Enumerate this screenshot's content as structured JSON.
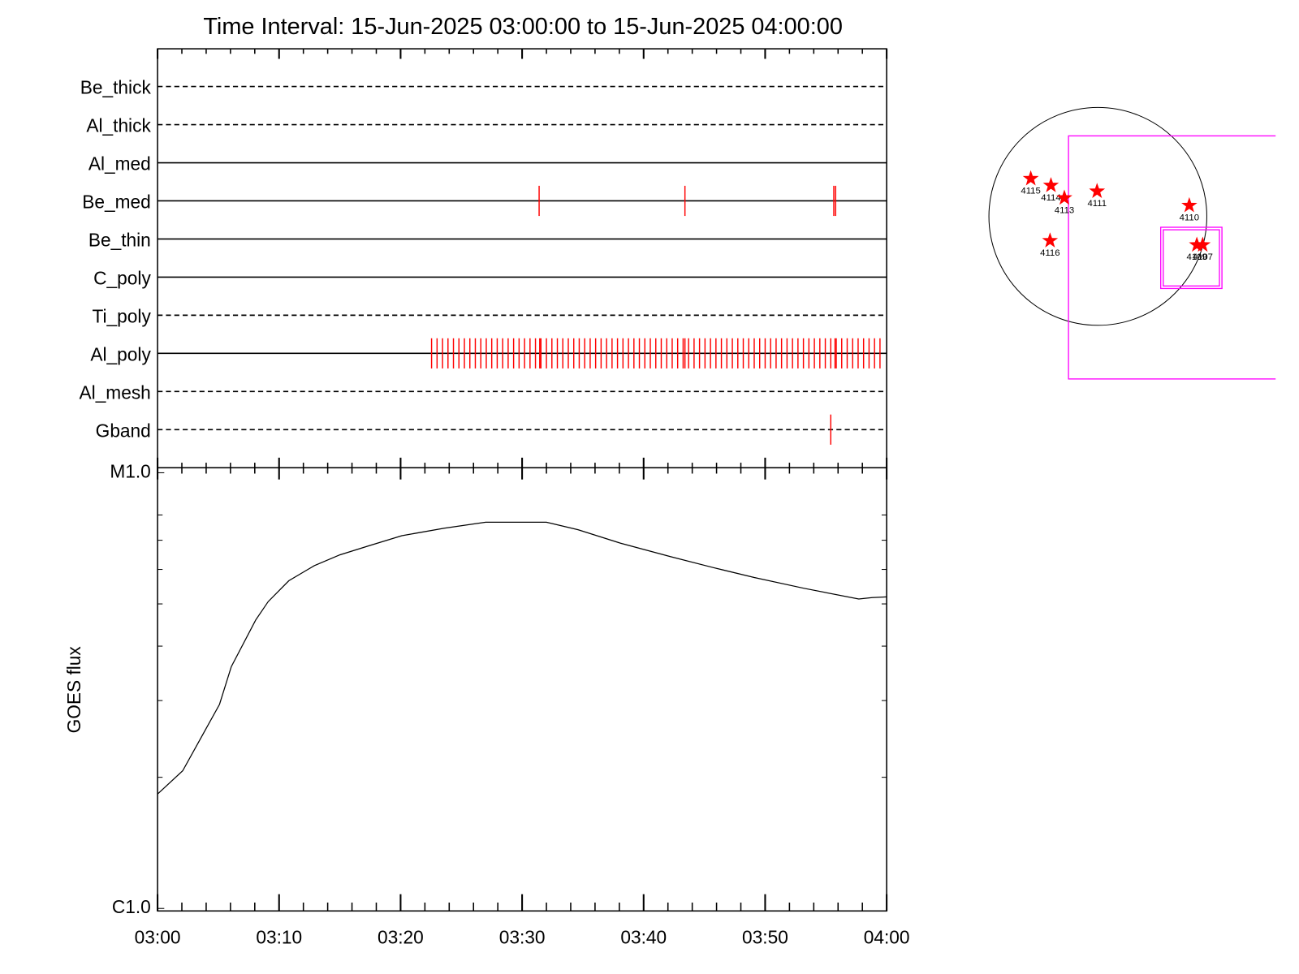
{
  "chart_data": [
    {
      "type": "event",
      "title": "Time Interval: 15-Jun-2025 03:00:00 to 15-Jun-2025 04:00:00",
      "color": "#ff0000",
      "series": [
        {
          "name": "Be_thick",
          "linestyle": "dashed",
          "x": []
        },
        {
          "name": "Al_thick",
          "linestyle": "dashed",
          "x": []
        },
        {
          "name": "Al_med",
          "linestyle": "solid",
          "x": []
        },
        {
          "name": "Be_med",
          "linestyle": "solid",
          "x": [
            31.4,
            43.4,
            55.65,
            55.8
          ]
        },
        {
          "name": "Be_thin",
          "linestyle": "solid",
          "x": []
        },
        {
          "name": "C_poly",
          "linestyle": "solid",
          "x": []
        },
        {
          "name": "Ti_poly",
          "linestyle": "dashed",
          "x": []
        },
        {
          "name": "Al_poly",
          "linestyle": "solid",
          "x": [
            22.55,
            23.0,
            23.45,
            23.9,
            24.35,
            24.8,
            25.25,
            25.7,
            26.15,
            26.6,
            27.05,
            27.5,
            27.95,
            28.4,
            28.85,
            29.3,
            29.75,
            30.2,
            30.65,
            31.1,
            31.45,
            31.55,
            32.0,
            32.45,
            32.9,
            33.35,
            33.8,
            34.25,
            34.7,
            35.15,
            35.6,
            36.05,
            36.5,
            36.95,
            37.4,
            37.85,
            38.3,
            38.75,
            39.2,
            39.65,
            40.1,
            40.55,
            41.0,
            41.45,
            41.9,
            42.35,
            42.8,
            43.25,
            43.4,
            43.7,
            44.15,
            44.6,
            45.05,
            45.5,
            45.95,
            46.4,
            46.85,
            47.3,
            47.75,
            48.2,
            48.65,
            49.1,
            49.55,
            50.0,
            50.45,
            50.9,
            51.35,
            51.8,
            52.25,
            52.7,
            53.15,
            53.6,
            54.05,
            54.5,
            54.95,
            55.4,
            55.75,
            55.85,
            56.3,
            56.75,
            57.2,
            57.65,
            58.1,
            58.55,
            59.0,
            59.45
          ]
        },
        {
          "name": "Al_mesh",
          "linestyle": "dashed",
          "x": []
        },
        {
          "name": "Gband",
          "linestyle": "dashed",
          "x": [
            55.4
          ]
        }
      ]
    },
    {
      "type": "line",
      "ylabel": "GOES flux",
      "log_y": true,
      "color": "#000000",
      "x": [
        0,
        2.07,
        5.1,
        6.07,
        8.07,
        9.1,
        10.8,
        12.9,
        15.0,
        17.4,
        20.1,
        23.6,
        27.0,
        32.0,
        34.6,
        38.1,
        42.2,
        45.7,
        49.1,
        53.2,
        57.7,
        58.8,
        60
      ],
      "values": [
        1.83e-06,
        2.07e-06,
        2.94e-06,
        3.59e-06,
        4.59e-06,
        5.06e-06,
        5.65e-06,
        6.12e-06,
        6.48e-06,
        6.8e-06,
        7.17e-06,
        7.46e-06,
        7.7e-06,
        7.7e-06,
        7.4e-06,
        6.89e-06,
        6.42e-06,
        6.06e-06,
        5.75e-06,
        5.43e-06,
        5.13e-06,
        5.17e-06,
        5.19e-06
      ],
      "xlim": [
        0,
        60
      ],
      "xticks": [
        {
          "value": 0,
          "label": "03:00"
        },
        {
          "value": 10,
          "label": "03:10"
        },
        {
          "value": 20,
          "label": "03:20"
        },
        {
          "value": 30,
          "label": "03:30"
        },
        {
          "value": 40,
          "label": "03:40"
        },
        {
          "value": 50,
          "label": "03:50"
        },
        {
          "value": 60,
          "label": "04:00"
        }
      ],
      "xminorticks": [
        2,
        4,
        6,
        8,
        12,
        14,
        16,
        18,
        22,
        24,
        26,
        28,
        32,
        34,
        36,
        38,
        42,
        44,
        46,
        48,
        52,
        54,
        56,
        58
      ],
      "ylim": [
        1e-06,
        1e-05
      ],
      "yticks": [
        {
          "value": 1e-06,
          "label": "C1.0"
        },
        {
          "value": 1e-05,
          "label": "M1.0"
        }
      ],
      "yminorticks": [
        2e-06,
        3e-06,
        4e-06,
        5e-06,
        6e-06,
        7e-06,
        8e-06
      ]
    },
    {
      "type": "map",
      "color": "#ff0000",
      "box_color": "#ff00ff",
      "solar_radius": 950,
      "xlim": [
        -1000,
        1550
      ],
      "regions": [
        {
          "label": "4115",
          "x": -585,
          "y": 329
        },
        {
          "label": "4114",
          "x": -409,
          "y": 270
        },
        {
          "label": "4113",
          "x": -292,
          "y": 161
        },
        {
          "label": "4111",
          "x": -7,
          "y": 219
        },
        {
          "label": "4110",
          "x": 797,
          "y": 95
        },
        {
          "label": "4116",
          "x": -417,
          "y": -212
        },
        {
          "label": "4109",
          "x": 863,
          "y": -249
        },
        {
          "label": "4107",
          "x": 914,
          "y": -249
        }
      ],
      "boxes": [
        {
          "x": [
            -256,
            1700
          ],
          "y": [
            702,
            -1418
          ]
        },
        {
          "x": [
            548,
            1082
          ],
          "y": [
            -95,
            -629
          ]
        },
        {
          "x": [
            570,
            1060
          ],
          "y": [
            -117,
            -607
          ]
        }
      ]
    }
  ]
}
